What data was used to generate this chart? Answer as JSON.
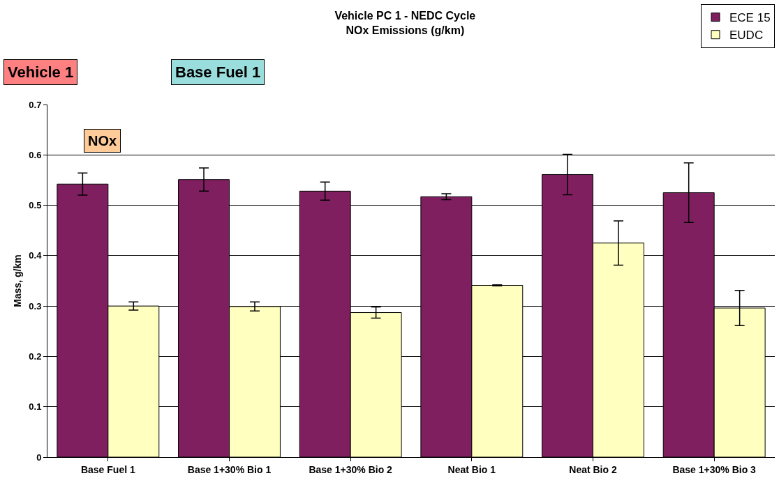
{
  "chart_data": {
    "type": "bar",
    "title": "Vehicle PC 1 - NEDC Cycle\nNOx Emissions (g/km)",
    "ylabel": "Mass, g/km",
    "annotations": [
      "Vehicle 1",
      "Base Fuel 1",
      "NOx"
    ],
    "categories": [
      "Base Fuel 1",
      "Base 1+30% Bio 1",
      "Base 1+30% Bio 2",
      "Neat Bio 1",
      "Neat Bio 2",
      "Base 1+30% Bio 3"
    ],
    "series": [
      {
        "name": "ECE 15",
        "color": "#7f1f5f",
        "values": [
          0.542,
          0.551,
          0.528,
          0.517,
          0.561,
          0.525
        ],
        "errors": [
          0.022,
          0.023,
          0.018,
          0.006,
          0.04,
          0.059
        ]
      },
      {
        "name": "EUDC",
        "color": "#ffffc0",
        "values": [
          0.3,
          0.299,
          0.287,
          0.341,
          0.425,
          0.296
        ],
        "errors": [
          0.008,
          0.009,
          0.011,
          0.001,
          0.044,
          0.035
        ]
      }
    ],
    "ylim": [
      0,
      0.7
    ],
    "yticks": [
      {
        "value": 0,
        "label": "0"
      },
      {
        "value": 0.1,
        "label": "0.1"
      },
      {
        "value": 0.2,
        "label": "0.2"
      },
      {
        "value": 0.3,
        "label": "0.3"
      },
      {
        "value": 0.4,
        "label": "0.4"
      },
      {
        "value": 0.5,
        "label": "0.5"
      },
      {
        "value": 0.6,
        "label": "0.6"
      },
      {
        "value": 0.7,
        "label": "0.7"
      }
    ],
    "grid": "y",
    "legend": "top right"
  }
}
